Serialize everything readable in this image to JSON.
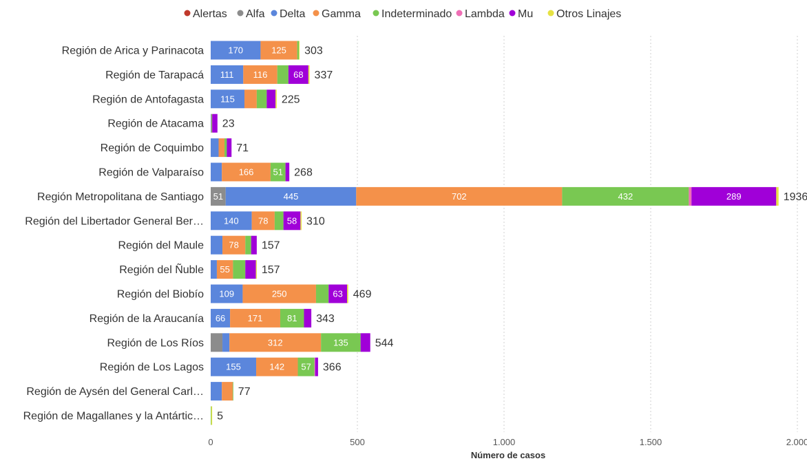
{
  "chart_data": {
    "type": "bar",
    "orientation": "horizontal",
    "stacked": true,
    "xlabel": "Número de casos",
    "xlim": [
      0,
      2000
    ],
    "x_ticks": [
      0,
      500,
      1000,
      1500,
      2000
    ],
    "x_tick_labels": [
      "0",
      "500",
      "1.000",
      "1.500",
      "2.000"
    ],
    "grid": "vertical dotted",
    "legend_position": "top-center",
    "series_names": [
      "Alertas",
      "Alfa",
      "Delta",
      "Gamma",
      "Indeterminado",
      "Lambda",
      "Mu",
      "Otros Linajes"
    ],
    "series_colors": [
      "#c0392b",
      "#8c8c8c",
      "#5b86dc",
      "#f4914a",
      "#79c852",
      "#ef6fb5",
      "#a000d8",
      "#e6e243"
    ],
    "categories": [
      "Región de Arica y Parinacota",
      "Región de Tarapacá",
      "Región de Antofagasta",
      "Región de Atacama",
      "Región de Coquimbo",
      "Región de Valparaíso",
      "Región Metropolitana de Santiago",
      "Región del Libertador General Ber…",
      "Región del Maule",
      "Región del Ñuble",
      "Región del Biobío",
      "Región de la Araucanía",
      "Región de Los Ríos",
      "Región de Los Lagos",
      "Región de Aysén del General Carl…",
      "Región de Magallanes y la Antártic…"
    ],
    "values": [
      [
        0,
        0,
        170,
        125,
        6,
        0,
        0,
        2
      ],
      [
        0,
        0,
        111,
        116,
        38,
        0,
        68,
        4
      ],
      [
        0,
        0,
        115,
        42,
        34,
        0,
        30,
        4
      ],
      [
        0,
        0,
        2,
        1,
        2,
        0,
        18,
        0
      ],
      [
        0,
        0,
        27,
        20,
        8,
        0,
        16,
        0
      ],
      [
        0,
        0,
        38,
        166,
        51,
        0,
        13,
        0
      ],
      [
        0,
        51,
        445,
        702,
        432,
        9,
        289,
        8
      ],
      [
        0,
        0,
        140,
        78,
        30,
        0,
        58,
        4
      ],
      [
        0,
        0,
        40,
        78,
        20,
        0,
        19,
        0
      ],
      [
        0,
        0,
        21,
        55,
        42,
        0,
        36,
        3
      ],
      [
        0,
        0,
        109,
        250,
        43,
        0,
        63,
        4
      ],
      [
        0,
        0,
        66,
        171,
        81,
        0,
        25,
        0
      ],
      [
        0,
        40,
        24,
        312,
        135,
        0,
        33,
        0
      ],
      [
        0,
        0,
        155,
        142,
        57,
        2,
        10,
        0
      ],
      [
        0,
        0,
        38,
        37,
        2,
        0,
        0,
        0
      ],
      [
        0,
        0,
        0,
        0,
        2,
        0,
        0,
        3
      ]
    ],
    "totals": [
      303,
      337,
      225,
      23,
      71,
      268,
      1936,
      310,
      157,
      157,
      469,
      343,
      544,
      366,
      77,
      5
    ],
    "visible_segment_labels": [
      [
        null,
        null,
        170,
        125,
        null,
        null,
        null,
        null
      ],
      [
        null,
        null,
        111,
        116,
        null,
        null,
        68,
        null
      ],
      [
        null,
        null,
        115,
        null,
        null,
        null,
        null,
        null
      ],
      [
        null,
        null,
        null,
        null,
        null,
        null,
        null,
        null
      ],
      [
        null,
        null,
        null,
        null,
        null,
        null,
        null,
        null
      ],
      [
        null,
        null,
        null,
        166,
        51,
        null,
        null,
        null
      ],
      [
        null,
        51,
        445,
        702,
        432,
        null,
        289,
        null
      ],
      [
        null,
        null,
        140,
        78,
        null,
        null,
        58,
        null
      ],
      [
        null,
        null,
        null,
        78,
        null,
        null,
        null,
        null
      ],
      [
        null,
        null,
        null,
        55,
        null,
        null,
        null,
        null
      ],
      [
        null,
        null,
        109,
        250,
        null,
        null,
        63,
        null
      ],
      [
        null,
        null,
        66,
        171,
        81,
        null,
        null,
        null
      ],
      [
        null,
        null,
        null,
        312,
        135,
        null,
        null,
        null
      ],
      [
        null,
        null,
        155,
        142,
        57,
        null,
        null,
        null
      ],
      [
        null,
        null,
        null,
        null,
        null,
        null,
        null,
        null
      ],
      [
        null,
        null,
        null,
        null,
        null,
        null,
        null,
        null
      ]
    ]
  }
}
